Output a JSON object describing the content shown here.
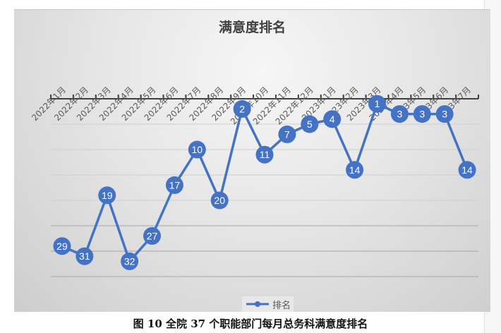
{
  "caption": "图 10 全院 37 个职能部门每月总务科满意度排名",
  "colors": {
    "series": "#4472C4",
    "axis": "#404040",
    "gridline": "#bfbfbf",
    "label_text": "#ffffff",
    "tick_label_text": "#595959"
  },
  "chart_data": {
    "type": "line",
    "title": "满意度排名",
    "xlabel": "",
    "ylabel": "",
    "x_axis_position": "top",
    "y_axis_reversed": true,
    "y_axis_visible": false,
    "ylim": [
      0,
      35
    ],
    "y_gridlines": [
      5,
      10,
      15,
      20,
      25,
      30,
      35
    ],
    "grid": true,
    "legend_position": "bottom",
    "data_labels": true,
    "categories": [
      "2022年1月",
      "2022年2月",
      "2022年3月",
      "2022年4月",
      "2022年5月",
      "2022年6月",
      "2022年7月",
      "2022年8月",
      "2022年9月",
      "2022年10月",
      "2022年11月",
      "2022年12月",
      "2023年1月",
      "2023年2月",
      "2023年3月",
      "2023年4月",
      "2023年5月",
      "2023年6月",
      "2023年7月"
    ],
    "series": [
      {
        "name": "排名",
        "values": [
          29,
          31,
          19,
          32,
          27,
          17,
          10,
          20,
          2,
          11,
          7,
          5,
          4,
          14,
          1,
          3,
          3,
          3,
          14
        ]
      }
    ]
  },
  "legend": {
    "items": [
      {
        "label": "排名",
        "icon": "line-with-marker-icon"
      }
    ]
  }
}
